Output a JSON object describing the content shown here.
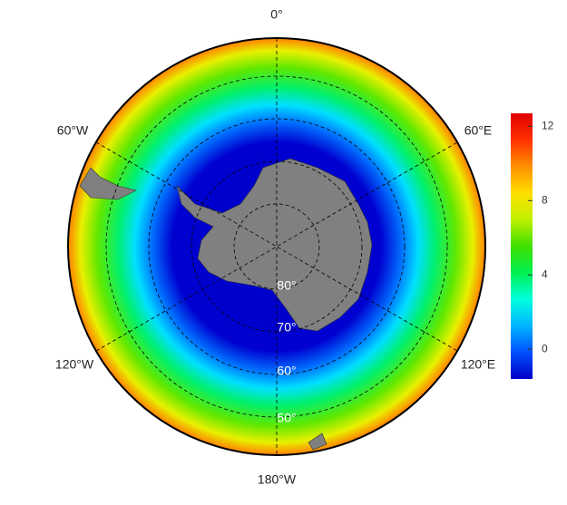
{
  "map": {
    "meridian_labels": [
      "0°",
      "60°E",
      "120°E",
      "180°W",
      "120°W",
      "60°W"
    ],
    "latitude_labels": [
      "80°",
      "70°",
      "60°",
      "50°"
    ]
  },
  "colorbar": {
    "lim": [
      -1.6,
      12.7
    ],
    "ticks": [
      0,
      4,
      8,
      12
    ],
    "colors": [
      "#0000c8",
      "#0050ff",
      "#00b4ff",
      "#00ffe0",
      "#00f050",
      "#40e000",
      "#c0f000",
      "#ffe000",
      "#ff9000",
      "#ff3000",
      "#e00000"
    ]
  }
}
